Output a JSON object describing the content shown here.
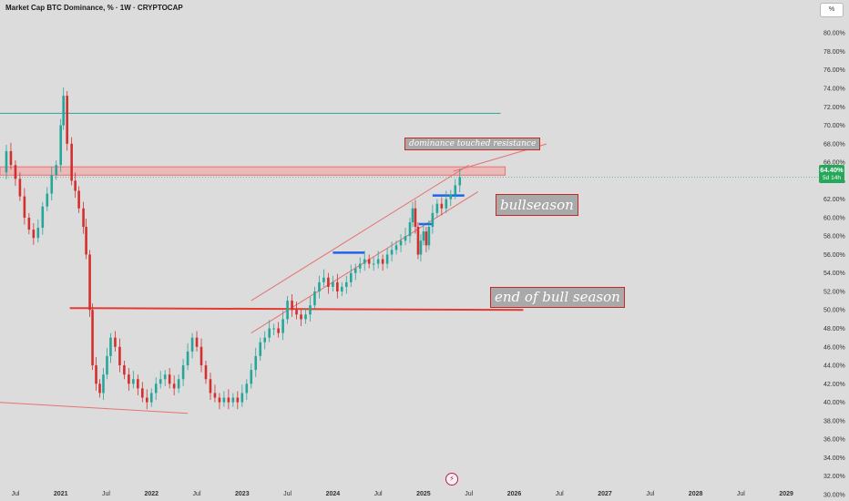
{
  "header": {
    "title": "Market Cap BTC Dominance, % · 1W · CRYPTOCAP",
    "scale_button": "%"
  },
  "price_tag": {
    "value": "64.40%",
    "countdown": "5d 14h"
  },
  "annotations": {
    "resistance_note": "dominance touched resistance",
    "bullseason": "bullseason",
    "end_bull": "end of bull season"
  },
  "logo_icon": "tradingview-flash-icon",
  "colors": {
    "background": "#dcdcdc",
    "up_candle": "#26a69a",
    "down_candle": "#d32f2f",
    "resistance_zone": "#f4a6a6",
    "red_line": "#e53935",
    "teal_line": "#26a69a",
    "blue_marker": "#1e63e9",
    "price_tag": "#26a85a"
  },
  "chart_data": {
    "type": "candlestick",
    "title": "Market Cap BTC Dominance, % · 1W · CRYPTOCAP",
    "xlabel": "",
    "ylabel": "",
    "ylim": [
      29.5,
      81.5
    ],
    "y_ticks": [
      "30.00%",
      "32.00%",
      "34.00%",
      "36.00%",
      "38.00%",
      "40.00%",
      "42.00%",
      "44.00%",
      "46.00%",
      "48.00%",
      "50.00%",
      "52.00%",
      "54.00%",
      "56.00%",
      "58.00%",
      "60.00%",
      "62.00%",
      "64.00%",
      "66.00%",
      "68.00%",
      "70.00%",
      "72.00%",
      "74.00%",
      "76.00%",
      "78.00%",
      "80.00%"
    ],
    "x_ticks": [
      "Jul",
      "2021",
      "Jul",
      "2022",
      "Jul",
      "2023",
      "Jul",
      "2024",
      "Jul",
      "2025",
      "Jul",
      "2026",
      "Jul",
      "2027",
      "Jul",
      "2028",
      "Jul",
      "2029"
    ],
    "x_range": [
      2020.33,
      2029.33
    ],
    "grid": false,
    "last_value": 64.4,
    "series": [
      {
        "points": [
          [
            2020.35,
            64.9
          ],
          [
            2020.4,
            67.2
          ],
          [
            2020.45,
            65.7
          ],
          [
            2020.5,
            64.2
          ],
          [
            2020.55,
            62.3
          ],
          [
            2020.6,
            60.0
          ],
          [
            2020.65,
            58.7
          ],
          [
            2020.7,
            57.8
          ],
          [
            2020.75,
            58.9
          ],
          [
            2020.8,
            61.2
          ],
          [
            2020.85,
            62.6
          ],
          [
            2020.9,
            64.6
          ],
          [
            2020.95,
            65.7
          ],
          [
            2021.0,
            70.0
          ],
          [
            2021.03,
            73.2
          ],
          [
            2021.07,
            68.0
          ],
          [
            2021.12,
            64.0
          ],
          [
            2021.16,
            62.9
          ],
          [
            2021.2,
            61.0
          ],
          [
            2021.25,
            59.0
          ],
          [
            2021.28,
            56.0
          ],
          [
            2021.32,
            50.0
          ],
          [
            2021.35,
            44.0
          ],
          [
            2021.39,
            42.0
          ],
          [
            2021.43,
            41.0
          ],
          [
            2021.47,
            43.0
          ],
          [
            2021.51,
            45.0
          ],
          [
            2021.55,
            47.0
          ],
          [
            2021.6,
            46.0
          ],
          [
            2021.65,
            44.0
          ],
          [
            2021.7,
            43.0
          ],
          [
            2021.75,
            42.0
          ],
          [
            2021.8,
            42.5
          ],
          [
            2021.85,
            41.5
          ],
          [
            2021.9,
            40.5
          ],
          [
            2021.95,
            40.0
          ],
          [
            2022.0,
            41.0
          ],
          [
            2022.05,
            42.0
          ],
          [
            2022.1,
            42.5
          ],
          [
            2022.15,
            43.0
          ],
          [
            2022.2,
            42.0
          ],
          [
            2022.25,
            41.5
          ],
          [
            2022.3,
            42.5
          ],
          [
            2022.35,
            44.0
          ],
          [
            2022.4,
            45.5
          ],
          [
            2022.45,
            47.0
          ],
          [
            2022.5,
            46.0
          ],
          [
            2022.55,
            44.0
          ],
          [
            2022.6,
            42.5
          ],
          [
            2022.65,
            41.0
          ],
          [
            2022.7,
            40.5
          ],
          [
            2022.75,
            40.0
          ],
          [
            2022.8,
            40.5
          ],
          [
            2022.85,
            40.0
          ],
          [
            2022.9,
            40.5
          ],
          [
            2022.95,
            40.0
          ],
          [
            2023.0,
            41.0
          ],
          [
            2023.05,
            42.0
          ],
          [
            2023.1,
            43.5
          ],
          [
            2023.15,
            45.0
          ],
          [
            2023.2,
            46.5
          ],
          [
            2023.25,
            47.0
          ],
          [
            2023.3,
            48.0
          ],
          [
            2023.35,
            48.0
          ],
          [
            2023.4,
            47.5
          ],
          [
            2023.45,
            49.0
          ],
          [
            2023.5,
            51.0
          ],
          [
            2023.55,
            50.0
          ],
          [
            2023.6,
            49.5
          ],
          [
            2023.65,
            49.0
          ],
          [
            2023.7,
            49.5
          ],
          [
            2023.75,
            50.5
          ],
          [
            2023.8,
            52.0
          ],
          [
            2023.85,
            53.0
          ],
          [
            2023.9,
            53.5
          ],
          [
            2023.95,
            52.5
          ],
          [
            2024.0,
            53.0
          ],
          [
            2024.05,
            52.0
          ],
          [
            2024.1,
            52.5
          ],
          [
            2024.15,
            53.0
          ],
          [
            2024.2,
            54.0
          ],
          [
            2024.25,
            54.5
          ],
          [
            2024.3,
            55.0
          ],
          [
            2024.35,
            55.5
          ],
          [
            2024.4,
            55.0
          ],
          [
            2024.45,
            55.0
          ],
          [
            2024.5,
            55.5
          ],
          [
            2024.55,
            55.0
          ],
          [
            2024.6,
            56.0
          ],
          [
            2024.65,
            56.5
          ],
          [
            2024.7,
            57.0
          ],
          [
            2024.75,
            57.5
          ],
          [
            2024.8,
            58.0
          ],
          [
            2024.85,
            59.5
          ],
          [
            2024.88,
            61.0
          ],
          [
            2024.91,
            59.0
          ],
          [
            2024.94,
            56.0
          ],
          [
            2024.97,
            57.5
          ],
          [
            2025.0,
            58.5
          ],
          [
            2025.03,
            57.0
          ],
          [
            2025.06,
            59.0
          ],
          [
            2025.1,
            60.5
          ],
          [
            2025.15,
            61.5
          ],
          [
            2025.2,
            61.0
          ],
          [
            2025.25,
            62.0
          ],
          [
            2025.3,
            62.5
          ],
          [
            2025.35,
            63.5
          ],
          [
            2025.4,
            64.4
          ]
        ]
      }
    ],
    "overlays": [
      {
        "kind": "horizontal_line",
        "color": "teal",
        "y": 71.3
      },
      {
        "kind": "zone",
        "color": "light-red",
        "from": 64.6,
        "to": 65.5
      },
      {
        "kind": "horizontal_line",
        "color": "red",
        "label": "end of bull season",
        "y": 50.2
      },
      {
        "kind": "trend_line",
        "from": [
          2020.3,
          40.0
        ],
        "to": [
          2022.4,
          38.8
        ]
      },
      {
        "kind": "channel",
        "lower": [
          [
            2023.1,
            47.5
          ],
          [
            2025.6,
            62.8
          ]
        ],
        "upper": [
          [
            2023.1,
            51.0
          ],
          [
            2025.5,
            65.7
          ]
        ]
      },
      {
        "kind": "level_marker",
        "color": "blue",
        "y": 56.2,
        "from": 2024.0,
        "to": 2024.35
      },
      {
        "kind": "level_marker",
        "color": "blue",
        "y": 59.3,
        "from": 2024.95,
        "to": 2025.1
      },
      {
        "kind": "level_marker",
        "color": "blue",
        "y": 62.4,
        "from": 2025.1,
        "to": 2025.45
      }
    ]
  }
}
